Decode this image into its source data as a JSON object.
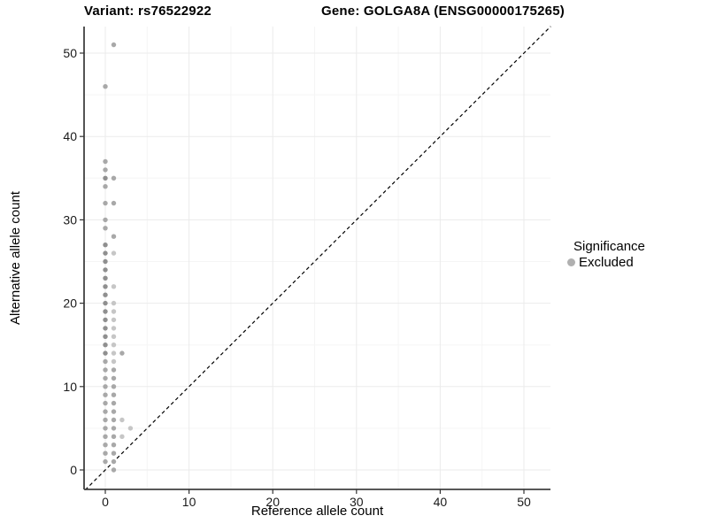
{
  "title_left": "Variant: rs76522922",
  "title_right": "Gene: GOLGA8A (ENSG00000175265)",
  "legend": {
    "title": "Significance",
    "items": [
      {
        "label": "Excluded",
        "color": "#b0b0b0"
      }
    ]
  },
  "chart_data": {
    "type": "scatter",
    "title": "Variant: rs76522922  /  Gene: GOLGA8A (ENSG00000175265)",
    "xlabel": "Reference allele count",
    "ylabel": "Alternative allele count",
    "xlim": [
      -2.5,
      53.2
    ],
    "ylim": [
      -2.4,
      53.2
    ],
    "xticks": [
      0,
      10,
      20,
      30,
      40,
      50
    ],
    "yticks": [
      0,
      10,
      20,
      30,
      40,
      50
    ],
    "minor_ticks": [
      5,
      15,
      25,
      35,
      45
    ],
    "grid": "major+minor",
    "legend_position": "right",
    "identity_line": {
      "style": "dashed",
      "color": "#000000",
      "equation": "y = x"
    },
    "point_colors": {
      "d": "#8f8f8f",
      "m": "#a8a8a8",
      "l": "#c6c6c6"
    },
    "series": [
      {
        "name": "Excluded",
        "points": [
          [
            0,
            1,
            "m"
          ],
          [
            0,
            2,
            "m"
          ],
          [
            0,
            3,
            "m"
          ],
          [
            0,
            4,
            "m"
          ],
          [
            0,
            5,
            "m"
          ],
          [
            0,
            6,
            "m"
          ],
          [
            0,
            7,
            "m"
          ],
          [
            0,
            8,
            "m"
          ],
          [
            0,
            9,
            "m"
          ],
          [
            0,
            10,
            "m"
          ],
          [
            0,
            11,
            "m"
          ],
          [
            0,
            12,
            "m"
          ],
          [
            0,
            13,
            "m"
          ],
          [
            0,
            14,
            "d"
          ],
          [
            0,
            15,
            "d"
          ],
          [
            0,
            16,
            "d"
          ],
          [
            0,
            17,
            "d"
          ],
          [
            0,
            18,
            "d"
          ],
          [
            0,
            19,
            "d"
          ],
          [
            0,
            20,
            "d"
          ],
          [
            0,
            21,
            "d"
          ],
          [
            0,
            22,
            "d"
          ],
          [
            0,
            23,
            "d"
          ],
          [
            0,
            24,
            "d"
          ],
          [
            0,
            25,
            "d"
          ],
          [
            0,
            26,
            "d"
          ],
          [
            0,
            27,
            "d"
          ],
          [
            0,
            29,
            "m"
          ],
          [
            0,
            30,
            "m"
          ],
          [
            0,
            32,
            "m"
          ],
          [
            0,
            34,
            "m"
          ],
          [
            0,
            35,
            "d"
          ],
          [
            0,
            36,
            "m"
          ],
          [
            0,
            37,
            "m"
          ],
          [
            0,
            46,
            "m"
          ],
          [
            1,
            0,
            "m"
          ],
          [
            1,
            1,
            "m"
          ],
          [
            1,
            2,
            "m"
          ],
          [
            1,
            3,
            "m"
          ],
          [
            1,
            4,
            "m"
          ],
          [
            1,
            5,
            "m"
          ],
          [
            1,
            6,
            "m"
          ],
          [
            1,
            7,
            "m"
          ],
          [
            1,
            8,
            "m"
          ],
          [
            1,
            9,
            "m"
          ],
          [
            1,
            10,
            "m"
          ],
          [
            1,
            11,
            "m"
          ],
          [
            1,
            12,
            "m"
          ],
          [
            1,
            13,
            "l"
          ],
          [
            1,
            14,
            "l"
          ],
          [
            1,
            15,
            "l"
          ],
          [
            1,
            16,
            "l"
          ],
          [
            1,
            17,
            "l"
          ],
          [
            1,
            18,
            "l"
          ],
          [
            1,
            19,
            "l"
          ],
          [
            1,
            20,
            "l"
          ],
          [
            1,
            22,
            "l"
          ],
          [
            1,
            26,
            "l"
          ],
          [
            1,
            28,
            "m"
          ],
          [
            1,
            32,
            "m"
          ],
          [
            1,
            35,
            "m"
          ],
          [
            1,
            51,
            "m"
          ],
          [
            2,
            4,
            "l"
          ],
          [
            2,
            6,
            "l"
          ],
          [
            2,
            14,
            "m"
          ],
          [
            3,
            5,
            "l"
          ]
        ]
      }
    ],
    "style": {
      "background": "#ffffff",
      "grid_major_color": "#ebebeb",
      "grid_minor_color": "#f5f5f5",
      "axis_line_color": "#404040",
      "tick_color": "#333333",
      "tick_label_color": "#1a1a1a",
      "point_radius_px": 2.7
    }
  }
}
